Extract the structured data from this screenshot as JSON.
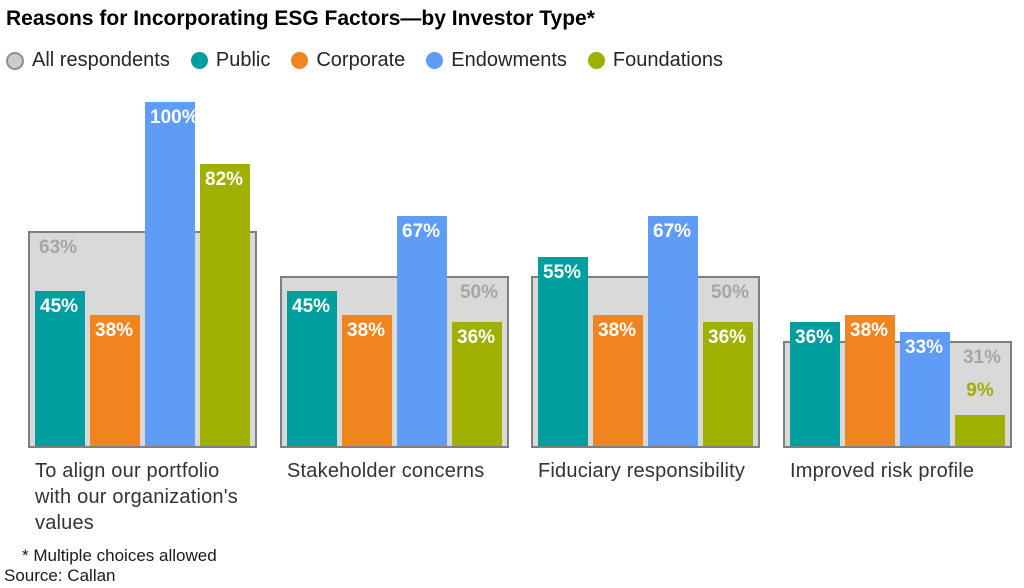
{
  "title": "Reasons for Incorporating ESG Factors—by Investor Type*",
  "footnotes": [
    "* Multiple choices allowed",
    "Source: Callan"
  ],
  "colors": {
    "all_fill": "#d9d9d9",
    "all_border": "#7f7f7f",
    "all_label": "#a6a6a6",
    "legend_all_dot": "#cccccc",
    "legend_all_ring": "#8f8f8f"
  },
  "chart_data": {
    "type": "bar",
    "title": "Reasons for Incorporating ESG Factors—by Investor Type*",
    "unit": "%",
    "ylim": [
      0,
      100
    ],
    "grid": false,
    "legend_position": "top",
    "categories": [
      "To align our portfolio with our organization's values",
      "Stakeholder concerns",
      "Fiduciary responsibility",
      "Improved risk profile"
    ],
    "series": [
      {
        "name": "All respondents",
        "color": "#d9d9d9",
        "values": [
          63,
          50,
          50,
          31
        ],
        "style": "background-band"
      },
      {
        "name": "Public",
        "color": "#009e9f",
        "values": [
          45,
          45,
          55,
          36
        ]
      },
      {
        "name": "Corporate",
        "color": "#f0841f",
        "values": [
          38,
          38,
          38,
          38
        ]
      },
      {
        "name": "Endowments",
        "color": "#5f9cf6",
        "values": [
          100,
          67,
          67,
          33
        ]
      },
      {
        "name": "Foundations",
        "color": "#9fb000",
        "values": [
          82,
          36,
          36,
          9
        ]
      }
    ],
    "data_labels": "each bar labeled with its percent value",
    "all_label_side": [
      "left",
      "right",
      "right",
      "right"
    ]
  }
}
